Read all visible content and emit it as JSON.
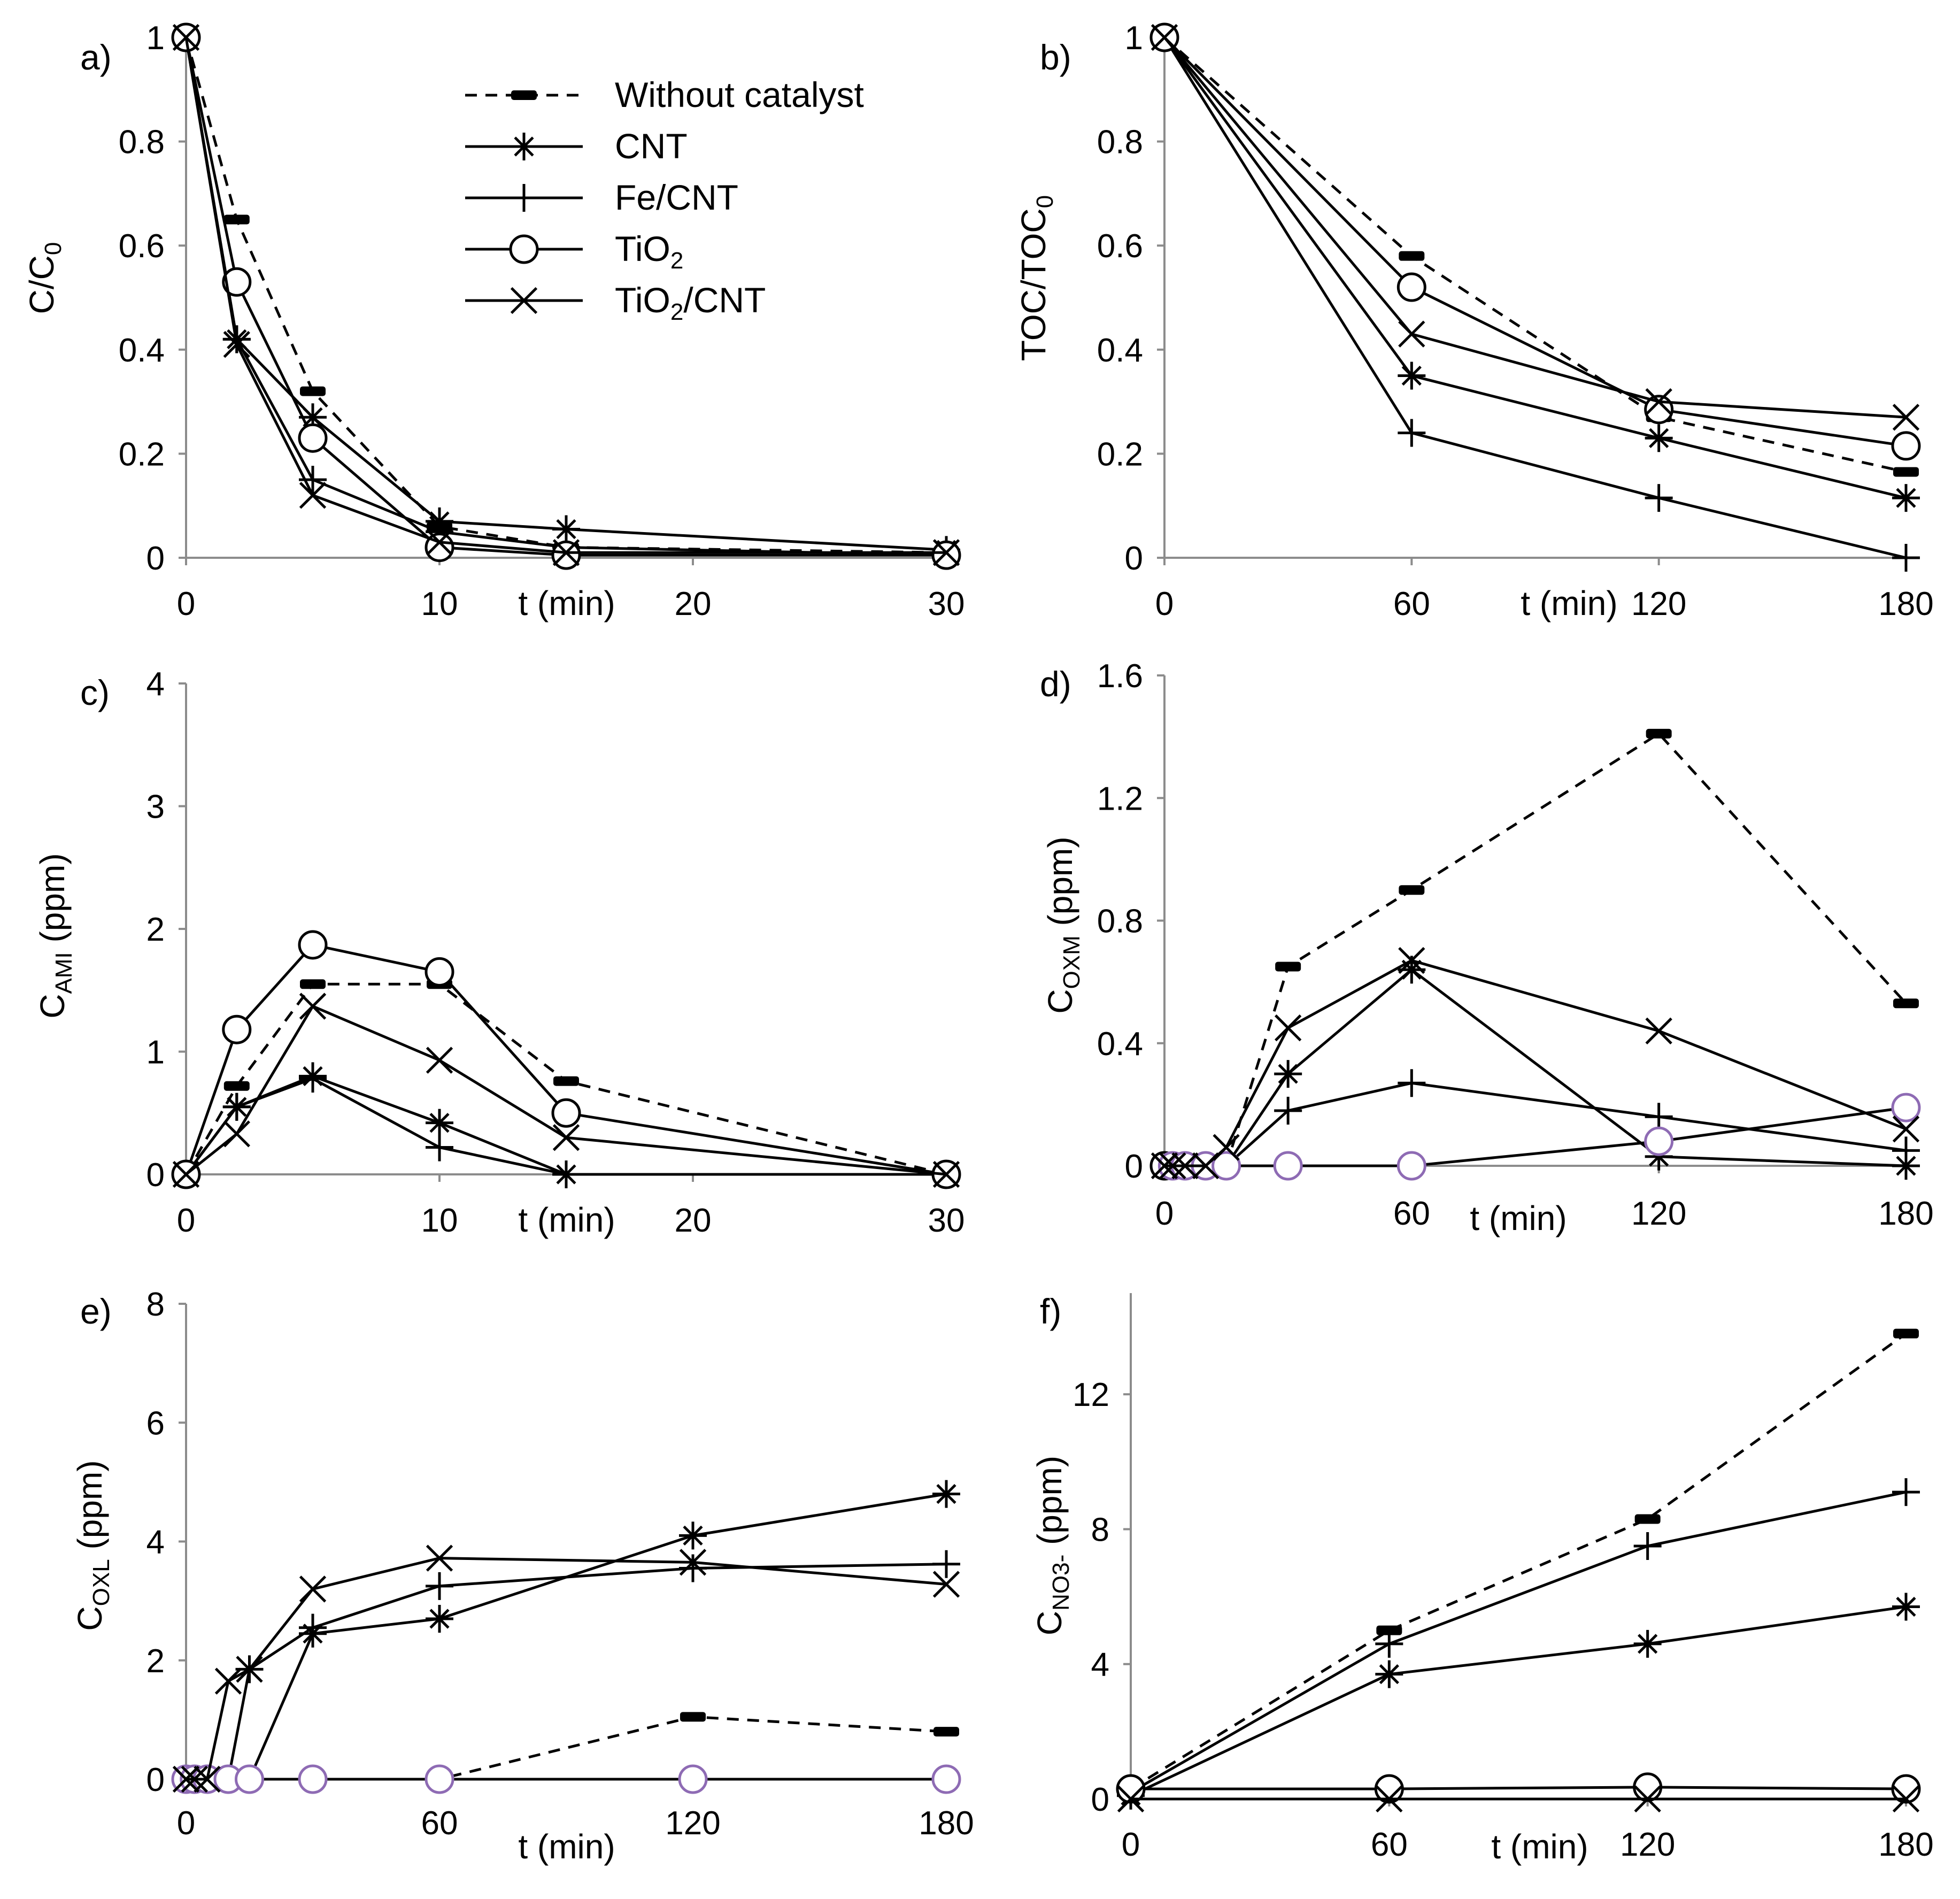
{
  "legend": {
    "entries": [
      "Without catalyst",
      "CNT",
      "Fe/CNT",
      "TiO2",
      "TiO2/CNT"
    ],
    "labels": [
      {
        "main": "Without catalyst",
        "sub": "",
        "tail": ""
      },
      {
        "main": "CNT",
        "sub": "",
        "tail": ""
      },
      {
        "main": "Fe/CNT",
        "sub": "",
        "tail": ""
      },
      {
        "main": "TiO",
        "sub": "2",
        "tail": ""
      },
      {
        "main": "TiO",
        "sub": "2",
        "tail": "/CNT"
      }
    ]
  },
  "chart_data": [
    {
      "type": "line",
      "panel": "a)",
      "xlabel": "t (min)",
      "ylabel": {
        "main": "C/C",
        "sub": "0"
      },
      "xlim": [
        0,
        30
      ],
      "ylim": [
        0,
        1
      ],
      "xticks": [
        0,
        10,
        20,
        30
      ],
      "yticks": [
        0,
        0.2,
        0.4,
        0.6,
        0.8,
        1
      ],
      "series": [
        {
          "name": "Without catalyst",
          "x": [
            0,
            2,
            5,
            10,
            15,
            30
          ],
          "y": [
            1,
            0.65,
            0.32,
            0.06,
            0.02,
            0.01
          ]
        },
        {
          "name": "CNT",
          "x": [
            0,
            2,
            5,
            10,
            15,
            30
          ],
          "y": [
            1,
            0.42,
            0.27,
            0.07,
            0.055,
            0.015
          ]
        },
        {
          "name": "Fe/CNT",
          "x": [
            0,
            2,
            5,
            10,
            15,
            30
          ],
          "y": [
            1,
            0.42,
            0.15,
            0.05,
            0.02,
            0.005
          ]
        },
        {
          "name": "TiO2",
          "x": [
            0,
            2,
            5,
            10,
            15,
            30
          ],
          "y": [
            1,
            0.53,
            0.23,
            0.02,
            0.005,
            0.005
          ]
        },
        {
          "name": "TiO2/CNT",
          "x": [
            0,
            2,
            5,
            10,
            15,
            30
          ],
          "y": [
            1,
            0.41,
            0.12,
            0.03,
            0.01,
            0.01
          ]
        }
      ]
    },
    {
      "type": "line",
      "panel": "b)",
      "xlabel": "t (min)",
      "ylabel": {
        "main": "TOC/TOC",
        "sub": "0"
      },
      "xlim": [
        0,
        180
      ],
      "ylim": [
        0,
        1
      ],
      "xticks": [
        0,
        60,
        120,
        180
      ],
      "yticks": [
        0,
        0.2,
        0.4,
        0.6,
        0.8,
        1
      ],
      "series": [
        {
          "name": "Without catalyst",
          "x": [
            0,
            60,
            120,
            180
          ],
          "y": [
            1,
            0.58,
            0.27,
            0.165
          ]
        },
        {
          "name": "CNT",
          "x": [
            0,
            60,
            120,
            180
          ],
          "y": [
            1,
            0.35,
            0.23,
            0.115
          ]
        },
        {
          "name": "Fe/CNT",
          "x": [
            0,
            60,
            120,
            180
          ],
          "y": [
            1,
            0.24,
            0.115,
            0
          ]
        },
        {
          "name": "TiO2",
          "x": [
            0,
            60,
            120,
            180
          ],
          "y": [
            1,
            0.52,
            0.285,
            0.215
          ]
        },
        {
          "name": "TiO2/CNT",
          "x": [
            0,
            60,
            120,
            180
          ],
          "y": [
            1,
            0.43,
            0.3,
            0.27
          ]
        }
      ]
    },
    {
      "type": "line",
      "panel": "c)",
      "xlabel": "t (min)",
      "ylabel": {
        "main": "C",
        "sub": "AMI",
        "tail": " (ppm)"
      },
      "xlim": [
        0,
        30
      ],
      "ylim": [
        0,
        4
      ],
      "xticks": [
        0,
        10,
        20,
        30
      ],
      "yticks": [
        0,
        1,
        2,
        3,
        4
      ],
      "series": [
        {
          "name": "Without catalyst",
          "x": [
            0,
            2,
            5,
            10,
            15,
            30
          ],
          "y": [
            0,
            0.72,
            1.55,
            1.55,
            0.76,
            0
          ]
        },
        {
          "name": "CNT",
          "x": [
            0,
            2,
            5,
            10,
            15,
            30
          ],
          "y": [
            0,
            0.55,
            0.8,
            0.42,
            0,
            0
          ]
        },
        {
          "name": "Fe/CNT",
          "x": [
            0,
            2,
            5,
            10,
            15,
            30
          ],
          "y": [
            0,
            0.55,
            0.78,
            0.22,
            0,
            0
          ]
        },
        {
          "name": "TiO2",
          "x": [
            0,
            2,
            5,
            10,
            15,
            30
          ],
          "y": [
            0,
            1.18,
            1.87,
            1.65,
            0.5,
            0
          ]
        },
        {
          "name": "TiO2/CNT",
          "x": [
            0,
            2,
            5,
            10,
            15,
            30
          ],
          "y": [
            0,
            0.33,
            1.37,
            0.93,
            0.3,
            0
          ]
        }
      ]
    },
    {
      "type": "line",
      "panel": "d)",
      "xlabel": "t (min)",
      "ylabel": {
        "main": "C",
        "sub": "OXM",
        "tail": " (ppm)"
      },
      "xlim": [
        0,
        180
      ],
      "ylim": [
        0,
        1.6
      ],
      "xticks": [
        0,
        60,
        120,
        180
      ],
      "yticks": [
        0,
        0.4,
        0.8,
        1.2,
        1.6
      ],
      "ytickLabels": [
        "0",
        "0.4",
        "0.8",
        "1.2",
        "1.6"
      ],
      "series": [
        {
          "name": "Without catalyst",
          "x": [
            0,
            2,
            5,
            10,
            15,
            30,
            60,
            120,
            180
          ],
          "y": [
            0,
            0,
            0,
            0,
            0,
            0.65,
            0.9,
            1.41,
            0.53
          ]
        },
        {
          "name": "CNT",
          "x": [
            0,
            2,
            5,
            10,
            15,
            30,
            60,
            120,
            180
          ],
          "y": [
            0,
            0,
            0,
            0,
            0,
            0.3,
            0.64,
            0.03,
            0
          ]
        },
        {
          "name": "Fe/CNT",
          "x": [
            0,
            2,
            5,
            10,
            15,
            30,
            60,
            120,
            180
          ],
          "y": [
            0,
            0,
            0,
            0,
            0,
            0.18,
            0.27,
            0.16,
            0.05
          ]
        },
        {
          "name": "TiO2",
          "x": [
            0,
            2,
            5,
            10,
            15,
            30,
            60,
            120,
            180
          ],
          "y": [
            0,
            0,
            0,
            0,
            0,
            0,
            0,
            0.08,
            0.19
          ]
        },
        {
          "name": "TiO2/CNT",
          "x": [
            0,
            2,
            5,
            10,
            15,
            30,
            60,
            120,
            180
          ],
          "y": [
            0,
            0,
            0,
            0,
            0.06,
            0.45,
            0.67,
            0.44,
            0.12
          ]
        }
      ]
    },
    {
      "type": "line",
      "panel": "e)",
      "xlabel": "t (min)",
      "ylabel": {
        "main": "C",
        "sub": "OXL",
        "tail": " (ppm)"
      },
      "xlim": [
        0,
        180
      ],
      "ylim": [
        0,
        8
      ],
      "xticks": [
        0,
        60,
        120,
        180
      ],
      "yticks": [
        0,
        2,
        4,
        6,
        8
      ],
      "series": [
        {
          "name": "Without catalyst",
          "x": [
            0,
            2,
            5,
            10,
            15,
            30,
            60,
            120,
            180
          ],
          "y": [
            0,
            0,
            0,
            0,
            0,
            0,
            0,
            1.05,
            0.8
          ]
        },
        {
          "name": "CNT",
          "x": [
            0,
            2,
            5,
            10,
            15,
            30,
            60,
            120,
            180
          ],
          "y": [
            0,
            0,
            0,
            0,
            0,
            2.45,
            2.7,
            4.1,
            4.8
          ]
        },
        {
          "name": "Fe/CNT",
          "x": [
            0,
            2,
            5,
            10,
            15,
            30,
            60,
            120,
            180
          ],
          "y": [
            0,
            0,
            0,
            0,
            1.85,
            2.55,
            3.25,
            3.55,
            3.62
          ]
        },
        {
          "name": "TiO2",
          "x": [
            0,
            2,
            5,
            10,
            15,
            30,
            60,
            120,
            180
          ],
          "y": [
            0,
            0,
            0,
            0,
            0,
            0,
            0,
            0,
            0
          ]
        },
        {
          "name": "TiO2/CNT",
          "x": [
            0,
            2,
            5,
            10,
            15,
            30,
            60,
            120,
            180
          ],
          "y": [
            0,
            0,
            0,
            1.65,
            1.85,
            3.2,
            3.72,
            3.65,
            3.28
          ]
        }
      ]
    },
    {
      "type": "line",
      "panel": "f)",
      "xlabel": "t (min)",
      "ylabel": {
        "main": "C",
        "sub": "NO3-",
        "tail": " (ppm)"
      },
      "xlim": [
        0,
        180
      ],
      "ylim": [
        0,
        15
      ],
      "xticks": [
        0,
        60,
        120,
        180
      ],
      "yticks": [
        0,
        4,
        8,
        12
      ],
      "series": [
        {
          "name": "Without catalyst",
          "x": [
            0,
            60,
            120,
            180
          ],
          "y": [
            0.3,
            5,
            8.3,
            13.8
          ]
        },
        {
          "name": "CNT",
          "x": [
            0,
            60,
            120,
            180
          ],
          "y": [
            0.1,
            3.7,
            4.6,
            5.7
          ]
        },
        {
          "name": "Fe/CNT",
          "x": [
            0,
            60,
            120,
            180
          ],
          "y": [
            0.2,
            4.6,
            7.5,
            9.1
          ]
        },
        {
          "name": "TiO2",
          "x": [
            0,
            60,
            120,
            180
          ],
          "y": [
            0.3,
            0.3,
            0.35,
            0.3
          ]
        },
        {
          "name": "TiO2/CNT",
          "x": [
            0,
            60,
            120,
            180
          ],
          "y": [
            0,
            0,
            0,
            0
          ]
        }
      ]
    }
  ]
}
